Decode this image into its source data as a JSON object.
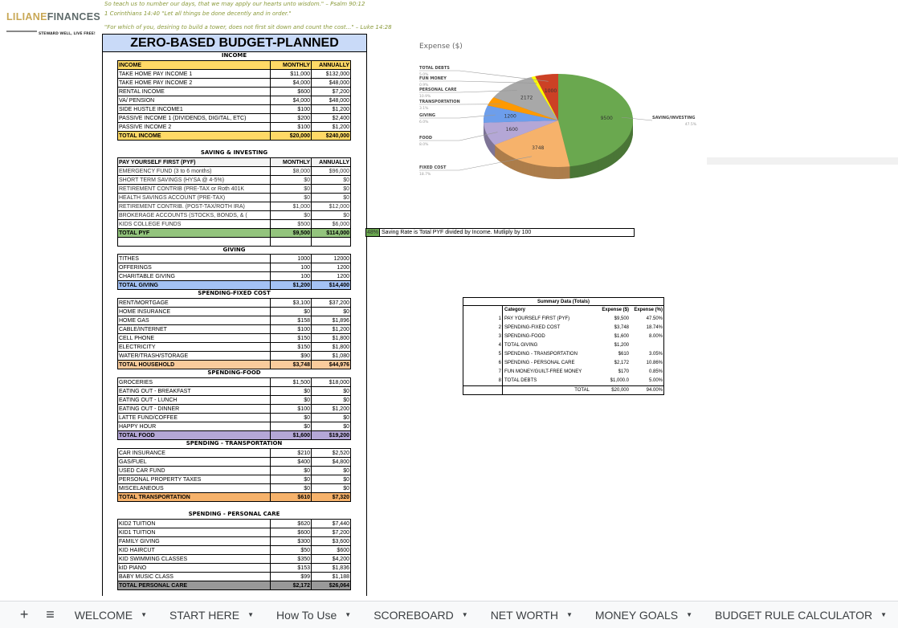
{
  "header": {
    "quotes": [
      "So teach us to number our days, that we may apply our hearts unto wisdom.\" – Psalm 90:12",
      "1 Corinthians 14:40 \"Let all things be done decently and in order.\"",
      "\"For which of you, desiring to build a tower, does not first sit down and count the cost...\" – Luke 14:28"
    ],
    "logo": {
      "part1": "LILIANE",
      "part2": "FINANCES",
      "tagline": "STEWARD WELL, LIVE FREE!"
    }
  },
  "budget": {
    "title": "ZERO-BASED BUDGET-PLANNED",
    "sections": [
      {
        "key": "income",
        "label": "INCOME",
        "header": [
          "INCOME",
          "MONTHLY",
          "ANNUALLY"
        ],
        "header_color": "#ffd966",
        "rows": [
          [
            "TAKE HOME PAY INCOME 1",
            "$11,000",
            "$132,000"
          ],
          [
            "TAKE HOME PAY INCOME 2",
            "$4,000",
            "$48,000"
          ],
          [
            "RENTAL INCOME",
            "$600",
            "$7,200"
          ],
          [
            "VA/ PENSION",
            "$4,000",
            "$48,000"
          ],
          [
            "SIDE HUSTLE INCOME1",
            "$100",
            "$1,200"
          ],
          [
            "PASSIVE INCOME 1 (DIVIDENDS, DIGITAL, ETC)",
            "$200",
            "$2,400"
          ],
          [
            "PASSIVE INCOME 2",
            "$100",
            "$1,200"
          ]
        ],
        "total": [
          "TOTAL INCOME",
          "$20,000",
          "$240,000"
        ],
        "total_color": "#ffd966"
      },
      {
        "key": "saving",
        "label": "SAVING & INVESTING",
        "header": [
          "PAY YOURSELF FIRST (PYF)",
          "MONTHLY",
          "ANNUALLY"
        ],
        "header_color": "#f3f3f3",
        "rows": [
          [
            "EMERGENCY FUND (3 to 6 months)",
            "$8,000",
            "$96,000"
          ],
          [
            "SHORT TERM SAVINGS (HYSA @ 4-5%)",
            "$0",
            "$0"
          ],
          [
            "RETIREMENT CONTRIB (PRE-TAX or Roth 401K",
            "$0",
            "$0"
          ],
          [
            "HEALTH SAVINGS ACCOUNT (PRE-TAX)",
            "$0",
            "$0"
          ],
          [
            "RETIREMENT CONTRIB. (POST-TAX/ROTH IRA)",
            "$1,000",
            "$12,000"
          ],
          [
            "BROKERAGE ACCOUNTS (STOCKS, BONDS, & (",
            "$0",
            "$0"
          ],
          [
            "KIDS COLLEGE FUNDS",
            "$500",
            "$6,000"
          ]
        ],
        "total": [
          "TOTAL PYF",
          "$9,500",
          "$114,000"
        ],
        "total_color": "#93c47d",
        "blank_after": true
      },
      {
        "key": "giving",
        "label": "GIVING",
        "rows": [
          [
            "TITHES",
            "1000",
            "12000"
          ],
          [
            "OFFERINGS",
            "100",
            "1200"
          ],
          [
            "CHARITABLE GIVING",
            "100",
            "1200"
          ]
        ],
        "total": [
          "TOTAL GIVING",
          "$1,200",
          "$14,400"
        ],
        "total_color": "#a4c2f4"
      },
      {
        "key": "fixed",
        "label": "SPENDING-FIXED COST",
        "rows": [
          [
            "RENT/MORTGAGE",
            "$3,100",
            "$37,200"
          ],
          [
            "HOME INSURANCE",
            "$0",
            "$0"
          ],
          [
            "HOME GAS",
            "$158",
            "$1,896"
          ],
          [
            "CABLE/INTERNET",
            "$100",
            "$1,200"
          ],
          [
            "CELL PHONE",
            "$150",
            "$1,800"
          ],
          [
            "ELECTRICITY",
            "$150",
            "$1,800"
          ],
          [
            "WATER/TRASH/STORAGE",
            "$90",
            "$1,080"
          ]
        ],
        "total": [
          "TOTAL HOUSEHOLD",
          "$3,748",
          "$44,976"
        ],
        "total_color": "#f9cb9c"
      },
      {
        "key": "food",
        "label": "SPENDING-FOOD",
        "rows": [
          [
            "GROCERIES",
            "$1,500",
            "$18,000"
          ],
          [
            "EATING OUT - BREAKFAST",
            "$0",
            "$0"
          ],
          [
            "EATING OUT - LUNCH",
            "$0",
            "$0"
          ],
          [
            "EATING OUT - DINNER",
            "$100",
            "$1,200"
          ],
          [
            "LATTE FUND/COFFEE",
            "$0",
            "$0"
          ],
          [
            "HAPPY HOUR",
            "$0",
            "$0"
          ]
        ],
        "total": [
          "TOTAL FOOD",
          "$1,600",
          "$19,200"
        ],
        "total_color": "#b4a7d6"
      },
      {
        "key": "transport",
        "label": "SPENDING - TRANSPORTATION",
        "rows": [
          [
            "CAR INSURANCE",
            "$210",
            "$2,520"
          ],
          [
            "GAS/FUEL",
            "$400",
            "$4,800"
          ],
          [
            "USED CAR FUND",
            "$0",
            "$0"
          ],
          [
            "PERSONAL PROPERTY TAXES",
            "$0",
            "$0"
          ],
          [
            "MISCELANEOUS",
            "$0",
            "$0"
          ]
        ],
        "total": [
          "TOTAL TRANSPORTATION",
          "$610",
          "$7,320"
        ],
        "total_color": "#f6b26b"
      },
      {
        "key": "personal",
        "label": "SPENDING - PERSONAL CARE",
        "rows": [
          [
            "KID2 TUITION",
            "$620",
            "$7,440"
          ],
          [
            "KID1 TUITION",
            "$600",
            "$7,200"
          ],
          [
            "FAMILY GIVING",
            "$300",
            "$3,600"
          ],
          [
            "KID HAIRCUT",
            "$50",
            "$600"
          ],
          [
            "KID SWIMMING CLASSES",
            "$350",
            "$4,200"
          ],
          [
            "kID PIANO",
            "$153",
            "$1,836"
          ],
          [
            "BABY MUSIC CLASS",
            "$99",
            "$1,188"
          ]
        ],
        "total": [
          "TOTAL PERSONAL CARE",
          "$2,172",
          "$26,064"
        ],
        "total_color": "#999999"
      }
    ]
  },
  "saving_rate": {
    "value": "48%",
    "note": "Saving Rate is Total PYF divided by Income. Mutliply by 100"
  },
  "summary": {
    "title": "Summary Data (Totals)",
    "headers": [
      "Category",
      "Expense ($)",
      "Expense (%)"
    ],
    "rows": [
      [
        "1",
        "PAY YOURSELF FIRST (PYF)",
        "$9,500",
        "47.50%"
      ],
      [
        "2",
        "SPENDING-FIXED COST",
        "$3,748",
        "18.74%"
      ],
      [
        "3",
        "SPENDING-FOOD",
        "$1,600",
        "8.00%"
      ],
      [
        "4",
        "TOTAL GIVING",
        "$1,200",
        ""
      ],
      [
        "5",
        "SPENDING - TRANSPORTATION",
        "$610",
        "3.05%"
      ],
      [
        "6",
        "SPENDING - PERSONAL CARE",
        "$2,172",
        "10.86%"
      ],
      [
        "7",
        "FUN MONEY/GUILT-FREE MONEY",
        "$170",
        "0.85%"
      ],
      [
        "8",
        "TOTAL DEBTS",
        "$1,000.0",
        "5.00%"
      ]
    ],
    "total": [
      "TOTAL",
      "$20,000",
      "94.00%"
    ]
  },
  "chart_data": {
    "type": "pie",
    "title": "Expense ($)",
    "style": "3d",
    "slices": [
      {
        "label": "SAVING/INVESTING",
        "value": 9500,
        "pct": "47.5%",
        "color": "#6aa84f"
      },
      {
        "label": "FIXED COST",
        "value": 3748,
        "pct": "18.7%",
        "color": "#f6b26b"
      },
      {
        "label": "FOOD",
        "value": 1600,
        "pct": "8.0%",
        "color": "#b4a7d6"
      },
      {
        "label": "GIVING",
        "value": 1200,
        "pct": "6.0%",
        "color": "#6d9eeb"
      },
      {
        "label": "TRANSPORTATION",
        "value": 610,
        "pct": "3.1%",
        "color": "#ff9900"
      },
      {
        "label": "PERSONAL CARE",
        "value": 2172,
        "pct": "10.9%",
        "color": "#a8a8a8"
      },
      {
        "label": "FUN MONEY",
        "value": 170,
        "pct": "0.9%",
        "color": "#ffff00"
      },
      {
        "label": "TOTAL DEBTS",
        "value": 1000,
        "pct": "5.0%",
        "color": "#cc4125"
      }
    ]
  },
  "tabs": {
    "add_icon": "plus-icon",
    "menu_icon": "hamburger-icon",
    "items": [
      "WELCOME",
      "START HERE",
      "How To Use",
      "SCOREBOARD",
      "NET WORTH",
      "MONEY GOALS",
      "BUDGET RULE CALCULATOR"
    ]
  }
}
